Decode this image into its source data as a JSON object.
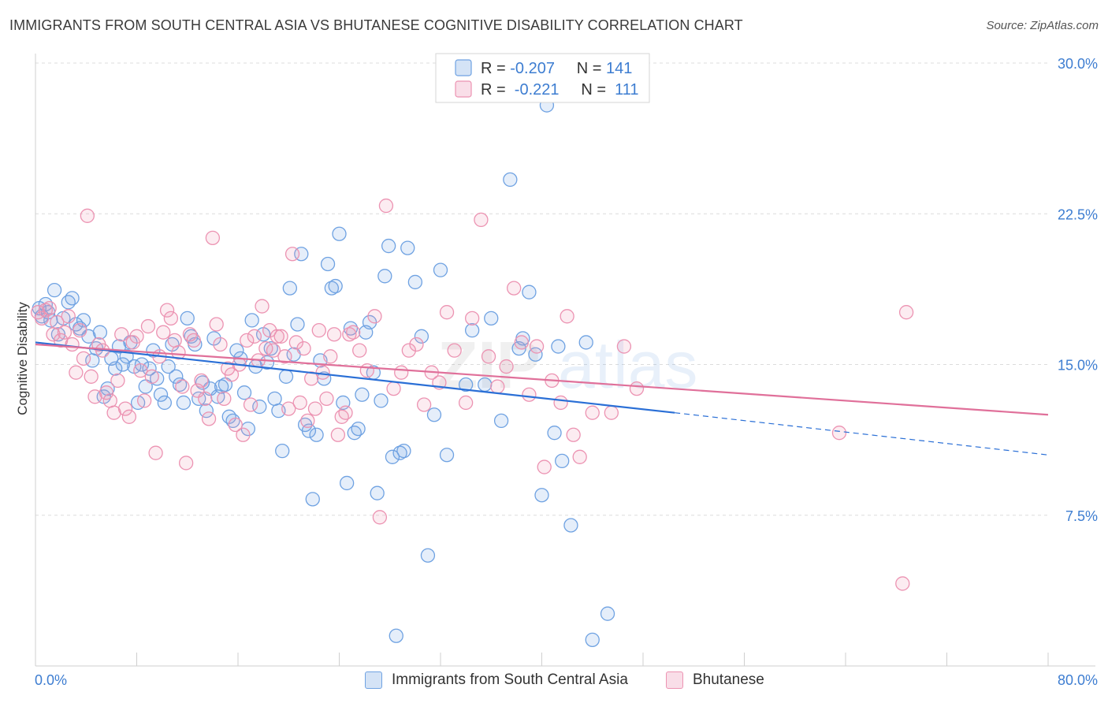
{
  "title": "IMMIGRANTS FROM SOUTH CENTRAL ASIA VS BHUTANESE COGNITIVE DISABILITY CORRELATION CHART",
  "source": "Source: ZipAtlas.com",
  "watermark": {
    "bold": "ZIP",
    "light": "atlas"
  },
  "colors": {
    "blue": "#6fa2e2",
    "blue_fill": "rgba(111,162,226,0.18)",
    "blue_line": "#2a6fd6",
    "pink": "#ec93b2",
    "pink_fill": "rgba(236,147,178,0.18)",
    "pink_line": "#e0709a",
    "axis_label": "#3d7dd1",
    "grid": "#dcdcdc"
  },
  "chart_data": {
    "type": "scatter",
    "ylabel": "Cognitive Disability",
    "xlim": [
      0,
      80
    ],
    "ylim": [
      0,
      30
    ],
    "x_tick_labels": [
      "0.0%",
      "80.0%"
    ],
    "y_ticks": [
      7.5,
      15.0,
      22.5,
      30.0
    ],
    "y_tick_labels": [
      "7.5%",
      "15.0%",
      "22.5%",
      "30.0%"
    ],
    "grid": true,
    "legend_position": "top-center",
    "stats": [
      {
        "r_label": "R = ",
        "r_value": "-0.207",
        "n_label": "N = ",
        "n_value": "141"
      },
      {
        "r_label": "R = ",
        "r_value": " -0.221",
        "n_label": "N = ",
        "n_value": " 111"
      }
    ],
    "series": [
      {
        "name": "Immigrants from South Central Asia",
        "trend": {
          "x0": 0,
          "y0": 16.1,
          "x1": 50.5,
          "y1": 12.6,
          "dashed_to_x": 80,
          "dashed_to_y": 10.5
        },
        "points": [
          [
            0.3,
            17.8
          ],
          [
            0.5,
            17.4
          ],
          [
            0.8,
            18.0
          ],
          [
            1.0,
            17.6
          ],
          [
            1.2,
            17.2
          ],
          [
            1.5,
            18.7
          ],
          [
            1.8,
            16.5
          ],
          [
            2.2,
            17.3
          ],
          [
            2.6,
            18.1
          ],
          [
            2.9,
            18.3
          ],
          [
            3.2,
            17.0
          ],
          [
            3.5,
            16.8
          ],
          [
            3.8,
            17.2
          ],
          [
            4.2,
            16.4
          ],
          [
            4.5,
            15.2
          ],
          [
            4.8,
            15.8
          ],
          [
            5.1,
            16.6
          ],
          [
            5.4,
            13.4
          ],
          [
            5.7,
            13.8
          ],
          [
            6.0,
            15.3
          ],
          [
            6.3,
            14.8
          ],
          [
            6.6,
            15.9
          ],
          [
            6.9,
            15.0
          ],
          [
            7.2,
            15.4
          ],
          [
            7.5,
            16.1
          ],
          [
            7.8,
            14.9
          ],
          [
            8.1,
            13.1
          ],
          [
            8.4,
            15.0
          ],
          [
            8.7,
            13.9
          ],
          [
            9.0,
            14.8
          ],
          [
            9.3,
            15.7
          ],
          [
            9.6,
            14.3
          ],
          [
            9.9,
            13.5
          ],
          [
            10.2,
            13.1
          ],
          [
            10.5,
            14.9
          ],
          [
            10.8,
            16.0
          ],
          [
            11.1,
            14.4
          ],
          [
            11.4,
            14.0
          ],
          [
            11.7,
            13.1
          ],
          [
            12.0,
            17.3
          ],
          [
            12.3,
            16.4
          ],
          [
            12.6,
            16.0
          ],
          [
            12.9,
            13.3
          ],
          [
            13.2,
            14.1
          ],
          [
            13.5,
            12.7
          ],
          [
            13.8,
            13.8
          ],
          [
            14.1,
            16.3
          ],
          [
            14.4,
            13.4
          ],
          [
            14.7,
            13.9
          ],
          [
            15.0,
            14.0
          ],
          [
            15.3,
            12.4
          ],
          [
            15.6,
            12.2
          ],
          [
            15.9,
            15.7
          ],
          [
            16.2,
            15.3
          ],
          [
            16.5,
            13.6
          ],
          [
            16.8,
            11.8
          ],
          [
            17.1,
            17.2
          ],
          [
            17.4,
            14.9
          ],
          [
            17.7,
            12.9
          ],
          [
            18.0,
            16.5
          ],
          [
            18.3,
            15.1
          ],
          [
            18.6,
            15.8
          ],
          [
            18.9,
            13.3
          ],
          [
            19.2,
            12.7
          ],
          [
            19.5,
            10.7
          ],
          [
            19.8,
            14.4
          ],
          [
            20.1,
            18.8
          ],
          [
            20.4,
            15.5
          ],
          [
            20.7,
            17.0
          ],
          [
            21.0,
            20.5
          ],
          [
            21.3,
            12.0
          ],
          [
            21.6,
            11.7
          ],
          [
            21.9,
            8.3
          ],
          [
            22.2,
            11.5
          ],
          [
            22.5,
            15.2
          ],
          [
            22.8,
            14.3
          ],
          [
            23.1,
            20.0
          ],
          [
            23.4,
            18.8
          ],
          [
            23.7,
            18.9
          ],
          [
            24.0,
            21.5
          ],
          [
            24.3,
            13.1
          ],
          [
            24.6,
            9.1
          ],
          [
            24.9,
            16.8
          ],
          [
            25.2,
            11.6
          ],
          [
            25.5,
            11.8
          ],
          [
            25.8,
            13.5
          ],
          [
            26.1,
            16.6
          ],
          [
            26.4,
            17.1
          ],
          [
            26.7,
            14.6
          ],
          [
            27.0,
            8.6
          ],
          [
            27.3,
            13.2
          ],
          [
            27.6,
            19.4
          ],
          [
            27.9,
            20.9
          ],
          [
            28.2,
            10.4
          ],
          [
            28.5,
            1.5
          ],
          [
            28.8,
            10.6
          ],
          [
            29.1,
            10.7
          ],
          [
            29.4,
            20.8
          ],
          [
            30.0,
            19.1
          ],
          [
            30.5,
            16.4
          ],
          [
            31.0,
            5.5
          ],
          [
            31.5,
            12.5
          ],
          [
            32.0,
            19.7
          ],
          [
            32.5,
            10.5
          ],
          [
            33.0,
            29.4
          ],
          [
            34.0,
            14.0
          ],
          [
            34.5,
            16.7
          ],
          [
            35.5,
            14.0
          ],
          [
            36.0,
            17.3
          ],
          [
            36.8,
            12.2
          ],
          [
            37.5,
            24.2
          ],
          [
            38.2,
            15.8
          ],
          [
            38.5,
            16.3
          ],
          [
            39.0,
            18.6
          ],
          [
            39.5,
            15.5
          ],
          [
            40.0,
            8.5
          ],
          [
            40.4,
            27.9
          ],
          [
            41.0,
            11.6
          ],
          [
            41.3,
            15.9
          ],
          [
            41.6,
            10.2
          ],
          [
            42.3,
            7.0
          ],
          [
            43.5,
            16.1
          ],
          [
            44.0,
            1.3
          ],
          [
            45.2,
            2.6
          ]
        ]
      },
      {
        "name": "Bhutanese",
        "trend": {
          "x0": 0,
          "y0": 16.0,
          "x1": 80,
          "y1": 12.5
        },
        "points": [
          [
            0.2,
            17.6
          ],
          [
            0.5,
            17.3
          ],
          [
            0.8,
            17.7
          ],
          [
            1.1,
            17.8
          ],
          [
            1.4,
            16.5
          ],
          [
            1.7,
            17.1
          ],
          [
            2.0,
            16.2
          ],
          [
            2.3,
            16.6
          ],
          [
            2.6,
            17.4
          ],
          [
            2.9,
            16.0
          ],
          [
            3.2,
            14.6
          ],
          [
            3.5,
            16.7
          ],
          [
            3.8,
            15.3
          ],
          [
            4.1,
            22.4
          ],
          [
            4.4,
            14.4
          ],
          [
            4.7,
            13.4
          ],
          [
            5.0,
            16.0
          ],
          [
            5.3,
            15.7
          ],
          [
            5.6,
            13.6
          ],
          [
            5.9,
            13.2
          ],
          [
            6.2,
            12.6
          ],
          [
            6.5,
            14.2
          ],
          [
            6.8,
            16.5
          ],
          [
            7.1,
            12.8
          ],
          [
            7.4,
            12.4
          ],
          [
            7.7,
            16.1
          ],
          [
            8.0,
            16.4
          ],
          [
            8.3,
            14.7
          ],
          [
            8.6,
            13.2
          ],
          [
            8.9,
            16.9
          ],
          [
            9.2,
            14.4
          ],
          [
            9.5,
            10.6
          ],
          [
            9.8,
            15.4
          ],
          [
            10.1,
            16.6
          ],
          [
            10.4,
            17.7
          ],
          [
            10.7,
            17.3
          ],
          [
            11.0,
            16.2
          ],
          [
            11.3,
            15.6
          ],
          [
            11.6,
            13.9
          ],
          [
            11.9,
            10.1
          ],
          [
            12.2,
            16.5
          ],
          [
            12.5,
            16.2
          ],
          [
            12.8,
            13.7
          ],
          [
            13.1,
            14.2
          ],
          [
            13.4,
            13.3
          ],
          [
            13.7,
            12.3
          ],
          [
            14.0,
            21.3
          ],
          [
            14.3,
            17.0
          ],
          [
            14.6,
            16.0
          ],
          [
            14.9,
            13.3
          ],
          [
            15.2,
            14.8
          ],
          [
            15.5,
            14.5
          ],
          [
            15.8,
            12.0
          ],
          [
            16.1,
            15.0
          ],
          [
            16.4,
            11.5
          ],
          [
            16.7,
            16.2
          ],
          [
            17.0,
            13.0
          ],
          [
            17.3,
            16.4
          ],
          [
            17.6,
            15.2
          ],
          [
            17.9,
            17.9
          ],
          [
            18.2,
            15.8
          ],
          [
            18.5,
            16.7
          ],
          [
            18.8,
            15.7
          ],
          [
            19.1,
            16.4
          ],
          [
            19.4,
            16.4
          ],
          [
            19.7,
            15.4
          ],
          [
            20.0,
            12.8
          ],
          [
            20.3,
            20.5
          ],
          [
            20.6,
            16.1
          ],
          [
            20.9,
            13.1
          ],
          [
            21.2,
            15.8
          ],
          [
            21.5,
            12.2
          ],
          [
            21.8,
            14.3
          ],
          [
            22.1,
            12.8
          ],
          [
            22.4,
            16.7
          ],
          [
            22.7,
            14.6
          ],
          [
            23.0,
            13.3
          ],
          [
            23.3,
            15.4
          ],
          [
            23.6,
            16.5
          ],
          [
            23.9,
            11.5
          ],
          [
            24.2,
            12.4
          ],
          [
            24.5,
            12.6
          ],
          [
            24.8,
            16.5
          ],
          [
            25.1,
            16.6
          ],
          [
            25.6,
            15.7
          ],
          [
            26.2,
            14.7
          ],
          [
            26.8,
            17.4
          ],
          [
            27.2,
            7.4
          ],
          [
            27.7,
            22.9
          ],
          [
            28.3,
            13.8
          ],
          [
            28.9,
            14.6
          ],
          [
            29.5,
            15.7
          ],
          [
            30.1,
            16.0
          ],
          [
            30.7,
            13.0
          ],
          [
            31.3,
            14.6
          ],
          [
            31.9,
            14.1
          ],
          [
            32.5,
            17.6
          ],
          [
            33.1,
            15.7
          ],
          [
            34.0,
            13.1
          ],
          [
            34.5,
            17.3
          ],
          [
            35.2,
            22.2
          ],
          [
            35.8,
            15.4
          ],
          [
            36.5,
            13.9
          ],
          [
            37.2,
            14.9
          ],
          [
            37.8,
            18.8
          ],
          [
            38.4,
            16.1
          ],
          [
            39.0,
            13.5
          ],
          [
            39.6,
            15.9
          ],
          [
            40.2,
            9.9
          ],
          [
            40.8,
            14.2
          ],
          [
            41.5,
            13.1
          ],
          [
            42.0,
            17.4
          ],
          [
            42.5,
            11.5
          ],
          [
            43.0,
            10.4
          ],
          [
            44.0,
            12.6
          ],
          [
            45.5,
            12.6
          ],
          [
            46.5,
            15.9
          ],
          [
            47.5,
            13.8
          ],
          [
            63.5,
            11.6
          ],
          [
            68.5,
            4.1
          ],
          [
            68.8,
            17.6
          ]
        ]
      }
    ]
  }
}
